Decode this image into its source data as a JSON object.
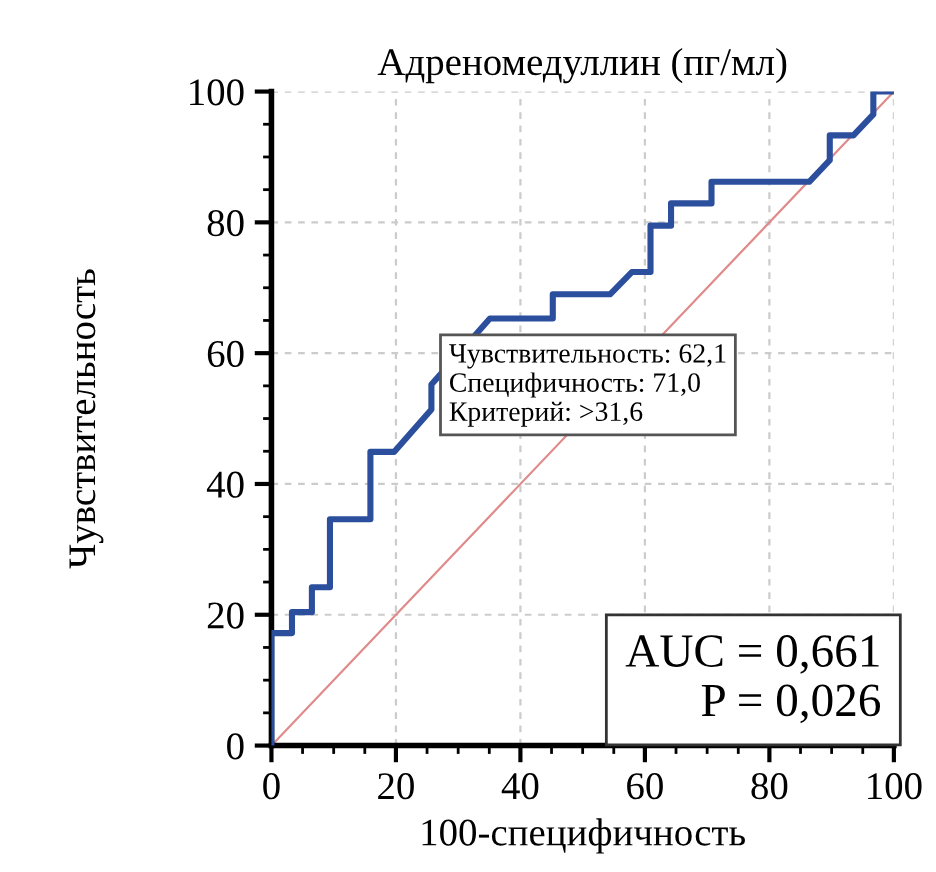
{
  "chart_data": {
    "type": "line",
    "title": "Адреномедуллин (пг/мл)",
    "xlabel": "100-специфичность",
    "ylabel": "Чувствительность",
    "xlim": [
      0,
      100
    ],
    "ylim": [
      0,
      100
    ],
    "xticks": [
      0,
      20,
      40,
      60,
      80,
      100
    ],
    "yticks": [
      0,
      20,
      40,
      60,
      80,
      100
    ],
    "grid": true,
    "marker": "none",
    "series": [
      {
        "type": "step",
        "color": "#2b4f9c",
        "line_style": "solid",
        "x": [
          0,
          0,
          3.3,
          3.3,
          6.5,
          6.5,
          9.4,
          9.4,
          15.9,
          15.9,
          19.7,
          25.7,
          25.7,
          35.1,
          45.2,
          45.2,
          54.4,
          57.9,
          60.9,
          60.9,
          64.2,
          64.2,
          70.7,
          70.7,
          86.4,
          89.7,
          89.7,
          93.5,
          96.7,
          96.7,
          100
        ],
        "values": [
          0,
          17.2,
          17.2,
          20.4,
          20.4,
          24.2,
          24.2,
          34.6,
          34.6,
          44.9,
          44.9,
          51.4,
          55.2,
          65.3,
          65.3,
          69.0,
          69.0,
          72.4,
          72.4,
          79.5,
          79.5,
          82.9,
          82.9,
          86.2,
          86.2,
          89.5,
          93.3,
          93.3,
          96.5,
          100,
          100
        ]
      },
      {
        "color": "#e08a8a",
        "line_style": "solid",
        "x": [
          0,
          100
        ],
        "values": [
          0,
          100
        ]
      }
    ],
    "annotations": [
      "Чувствительность: 62,1\nСпецифичность: 71,0\nКритерий: >31,6",
      "AUC = 0,661\nP = 0,026"
    ]
  }
}
